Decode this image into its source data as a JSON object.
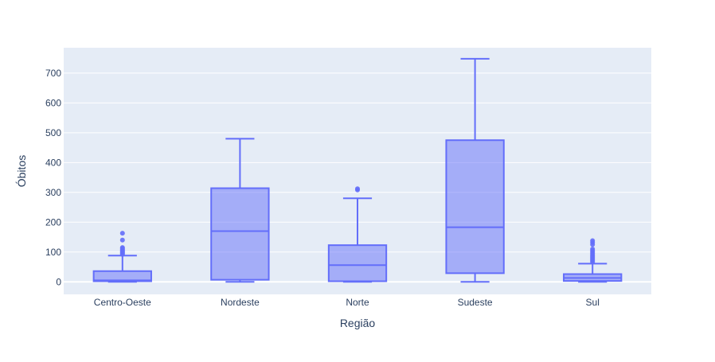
{
  "chart_data": {
    "type": "box",
    "xlabel": "Região",
    "ylabel": "Óbitos",
    "ylim": [
      -42,
      785
    ],
    "yticks": [
      0,
      100,
      200,
      300,
      400,
      500,
      600,
      700
    ],
    "grid": true,
    "colors": {
      "plot_bg": "#e5ecf6",
      "grid": "#ffffff",
      "box_line": "#636efa",
      "box_fill": "rgba(99,110,250,0.5)",
      "text": "#2a3f5f"
    },
    "categories": [
      "Centro-Oeste",
      "Nordeste",
      "Norte",
      "Sudeste",
      "Sul"
    ],
    "boxes": [
      {
        "category": "Centro-Oeste",
        "lowerfence": 0,
        "q1": 2,
        "median": 5,
        "q3": 36,
        "upperfence": 88,
        "outliers": [
          92,
          95,
          98,
          100,
          103,
          106,
          108,
          112,
          115,
          140,
          163
        ]
      },
      {
        "category": "Nordeste",
        "lowerfence": 0,
        "q1": 7,
        "median": 170,
        "q3": 314,
        "upperfence": 480,
        "outliers": []
      },
      {
        "category": "Norte",
        "lowerfence": 0,
        "q1": 2,
        "median": 56,
        "q3": 123,
        "upperfence": 280,
        "outliers": [
          308,
          312
        ]
      },
      {
        "category": "Sudeste",
        "lowerfence": 0,
        "q1": 29,
        "median": 183,
        "q3": 475,
        "upperfence": 748,
        "outliers": []
      },
      {
        "category": "Sul",
        "lowerfence": 0,
        "q1": 3,
        "median": 13,
        "q3": 26,
        "upperfence": 61,
        "outliers": [
          66,
          70,
          74,
          78,
          82,
          86,
          90,
          95,
          100,
          105,
          110,
          125,
          132,
          138
        ]
      }
    ]
  }
}
